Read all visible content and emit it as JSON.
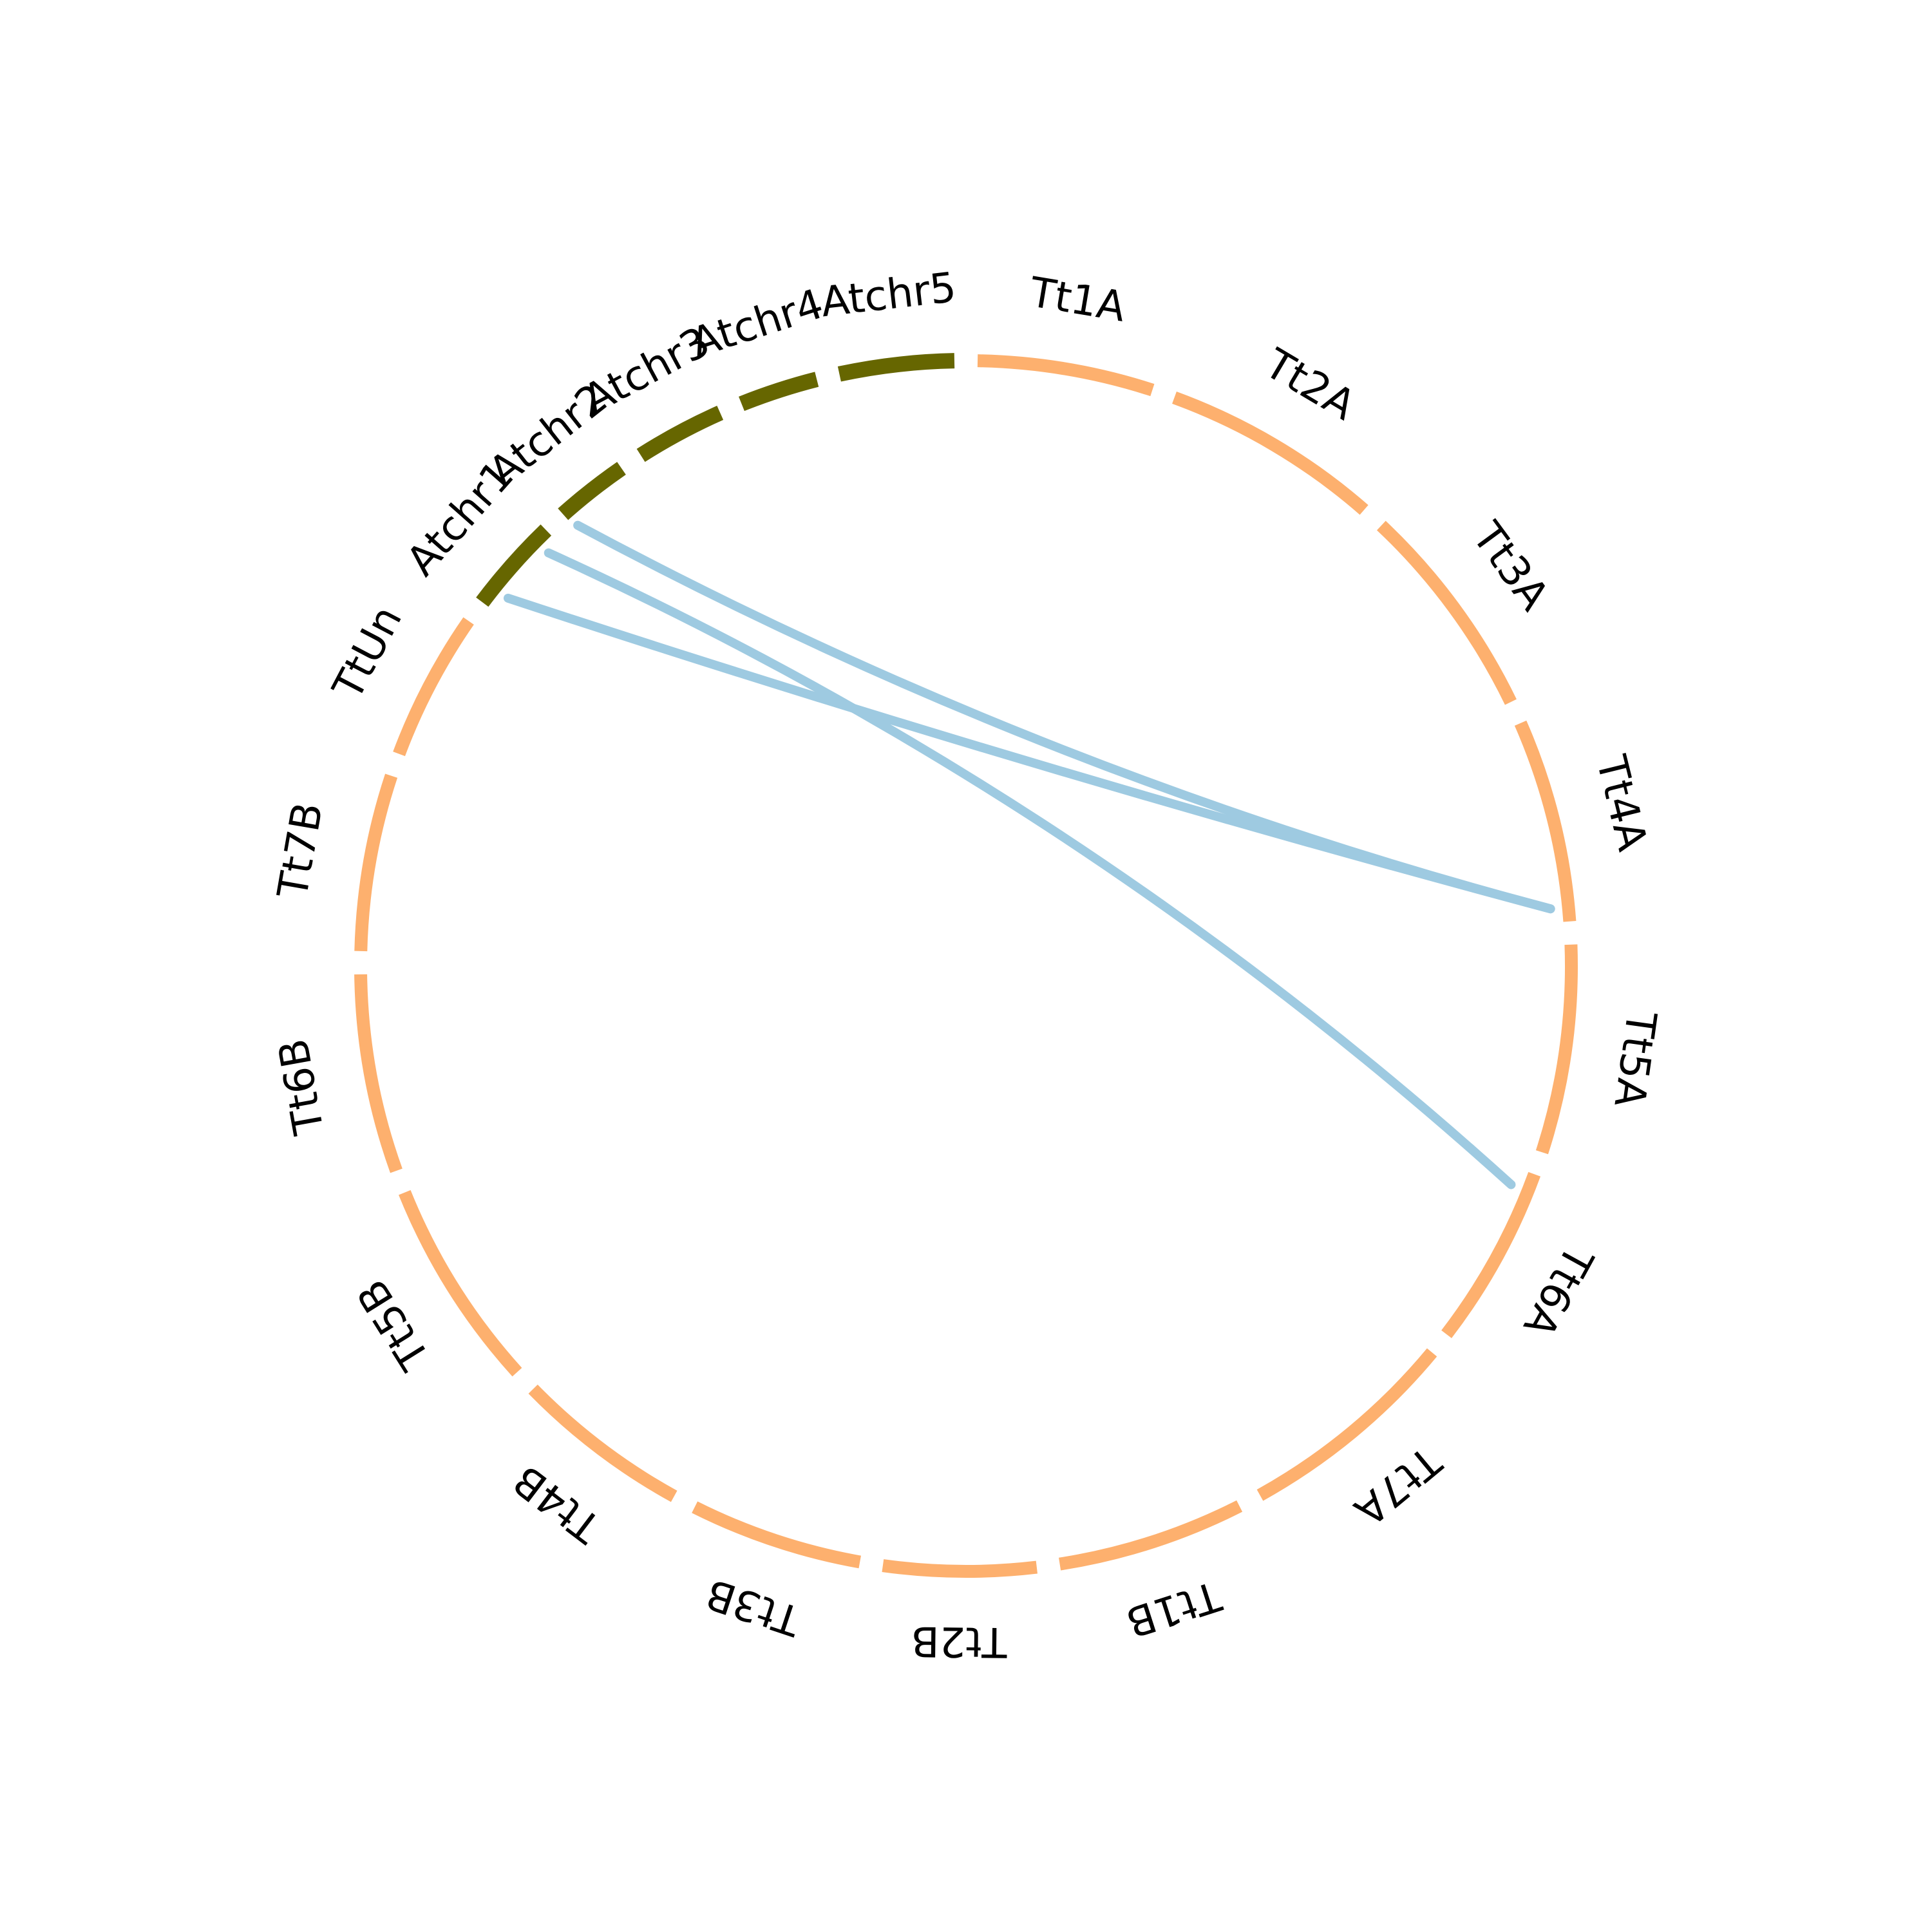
{
  "colors": {
    "at": "#666600",
    "tt": "#fdb06e",
    "link": "#9ecae1",
    "background": "#ffffff"
  },
  "chart_data": {
    "type": "circos",
    "title": "",
    "start_position": "top",
    "direction": "clockwise",
    "chromosomes": [
      {
        "name": "Tt1A",
        "group": "tt",
        "color": "#fdb06e",
        "size": 22.7
      },
      {
        "name": "Tt2A",
        "group": "tt",
        "color": "#fdb06e",
        "size": 28.3
      },
      {
        "name": "Tt3A",
        "group": "tt",
        "color": "#fdb06e",
        "size": 28.1
      },
      {
        "name": "Tt4A",
        "group": "tt",
        "color": "#fdb06e",
        "size": 26.2
      },
      {
        "name": "Tt5A",
        "group": "tt",
        "color": "#fdb06e",
        "size": 26.9
      },
      {
        "name": "Tt6A",
        "group": "tt",
        "color": "#fdb06e",
        "size": 23.4
      },
      {
        "name": "Tt7A",
        "group": "tt",
        "color": "#fdb06e",
        "size": 28.7
      },
      {
        "name": "Tt1B",
        "group": "tt",
        "color": "#fdb06e",
        "size": 24.2
      },
      {
        "name": "Tt2B",
        "group": "tt",
        "color": "#fdb06e",
        "size": 19.7
      },
      {
        "name": "Tt3B",
        "group": "tt",
        "color": "#fdb06e",
        "size": 22.3
      },
      {
        "name": "Tt4B",
        "group": "tt",
        "color": "#fdb06e",
        "size": 22.7
      },
      {
        "name": "Tt5B",
        "group": "tt",
        "color": "#fdb06e",
        "size": 27.2
      },
      {
        "name": "Tt6B",
        "group": "tt",
        "color": "#fdb06e",
        "size": 25.6
      },
      {
        "name": "Tt7B",
        "group": "tt",
        "color": "#fdb06e",
        "size": 22.8
      },
      {
        "name": "TtUn",
        "group": "tt",
        "color": "#fdb06e",
        "size": 19.2
      },
      {
        "name": "Atchr1",
        "group": "at",
        "color": "#666600",
        "size": 12.3
      },
      {
        "name": "Atchr2",
        "group": "at",
        "color": "#666600",
        "size": 9.5
      },
      {
        "name": "Atchr3",
        "group": "at",
        "color": "#666600",
        "size": 11.5
      },
      {
        "name": "Atchr4",
        "group": "at",
        "color": "#666600",
        "size": 10.1
      },
      {
        "name": "Atchr5",
        "group": "at",
        "color": "#666600",
        "size": 14.8
      }
    ],
    "links": [
      {
        "from": "Atchr1",
        "from_pos": 0.2,
        "to": "Tt4A",
        "to_pos": 0.93,
        "color": "#9ecae1"
      },
      {
        "from": "Atchr1",
        "from_pos": 0.85,
        "to": "Tt6A",
        "to_pos": 0.1,
        "color": "#9ecae1"
      },
      {
        "from": "Atchr2",
        "from_pos": 0.05,
        "to": "Tt4A",
        "to_pos": 0.93,
        "color": "#9ecae1"
      }
    ]
  }
}
